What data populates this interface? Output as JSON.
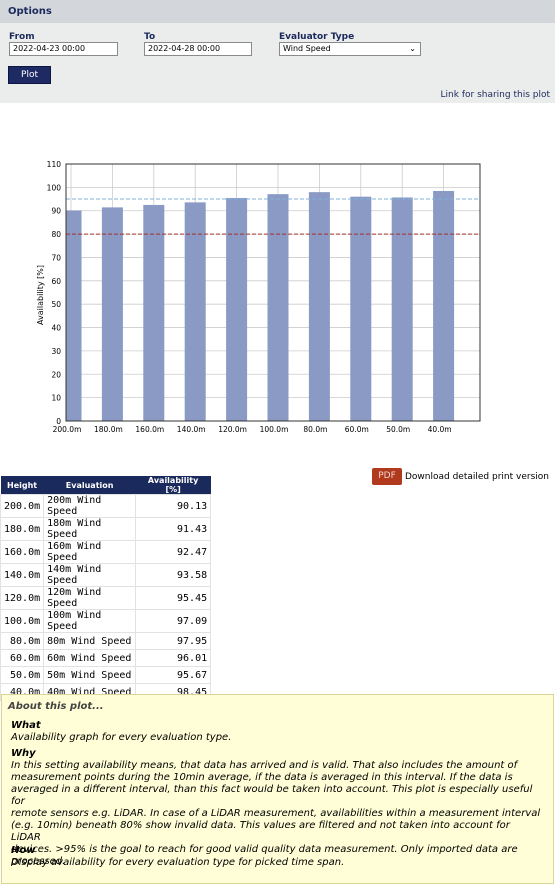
{
  "options": {
    "title": "Options",
    "from_label": "From",
    "from_value": "2022-04-23 00:00",
    "to_label": "To",
    "to_value": "2022-04-28 00:00",
    "evaluator_label": "Evaluator Type",
    "evaluator_value": "Wind Speed",
    "plot_label": "Plot",
    "share_link": "Link for sharing this plot"
  },
  "chart_data": {
    "type": "bar",
    "categories": [
      "200.0m",
      "180.0m",
      "160.0m",
      "140.0m",
      "120.0m",
      "100.0m",
      "80.0m",
      "60.0m",
      "50.0m",
      "40.0m"
    ],
    "values": [
      90.13,
      91.43,
      92.47,
      93.58,
      95.45,
      97.09,
      97.95,
      96.01,
      95.67,
      98.45
    ],
    "title": "",
    "xlabel": "",
    "ylabel": "Availability [%]",
    "ylim": [
      0,
      110
    ],
    "yticks": [
      0,
      10,
      20,
      30,
      40,
      50,
      60,
      70,
      80,
      90,
      100,
      110
    ],
    "reference_lines": [
      95,
      80
    ],
    "grid": true,
    "bar_color": "#8a9ac4",
    "ref_high_color": "#7fb2d8",
    "ref_low_color": "#a0332a"
  },
  "download": {
    "pdf_label": "PDF",
    "text": "Download detailed print version"
  },
  "table": {
    "headers": [
      "Height",
      "Evaluation",
      "Availability [%]"
    ],
    "rows": [
      [
        "200.0m",
        "200m Wind Speed",
        "90.13"
      ],
      [
        "180.0m",
        "180m Wind Speed",
        "91.43"
      ],
      [
        "160.0m",
        "160m Wind Speed",
        "92.47"
      ],
      [
        "140.0m",
        "140m Wind Speed",
        "93.58"
      ],
      [
        "120.0m",
        "120m Wind Speed",
        "95.45"
      ],
      [
        "100.0m",
        "100m Wind Speed",
        "97.09"
      ],
      [
        "80.0m",
        "80m Wind Speed",
        "97.95"
      ],
      [
        "60.0m",
        "60m Wind Speed",
        "96.01"
      ],
      [
        "50.0m",
        "50m Wind Speed",
        "95.67"
      ],
      [
        "40.0m",
        "40m Wind Speed",
        "98.45"
      ]
    ]
  },
  "about": {
    "title": "About this plot...",
    "what_head": "What",
    "what_body": "Availability graph for every evaluation type.",
    "why_head": "Why",
    "why_lines": [
      "In this setting availability means, that data has arrived and is valid. That also includes the amount of",
      "measurement points during the 10min average, if the data is averaged in this interval. If the data is",
      "averaged in a different interval, than this fact would be taken into account. This plot is especially useful for",
      "remote sensors e.g. LiDAR. In case of a LiDAR measurement, availabilities within a measurement interval",
      "(e.g. 10min) beneath 80% show invalid data. This values are filtered and not taken into account for LiDAR",
      "devices. >95% is the goal to reach for good valid quality data measurement. Only imported data are",
      "processed."
    ],
    "how_head": "How",
    "how_body": "Display availability for every evaluation type for picked time span."
  }
}
